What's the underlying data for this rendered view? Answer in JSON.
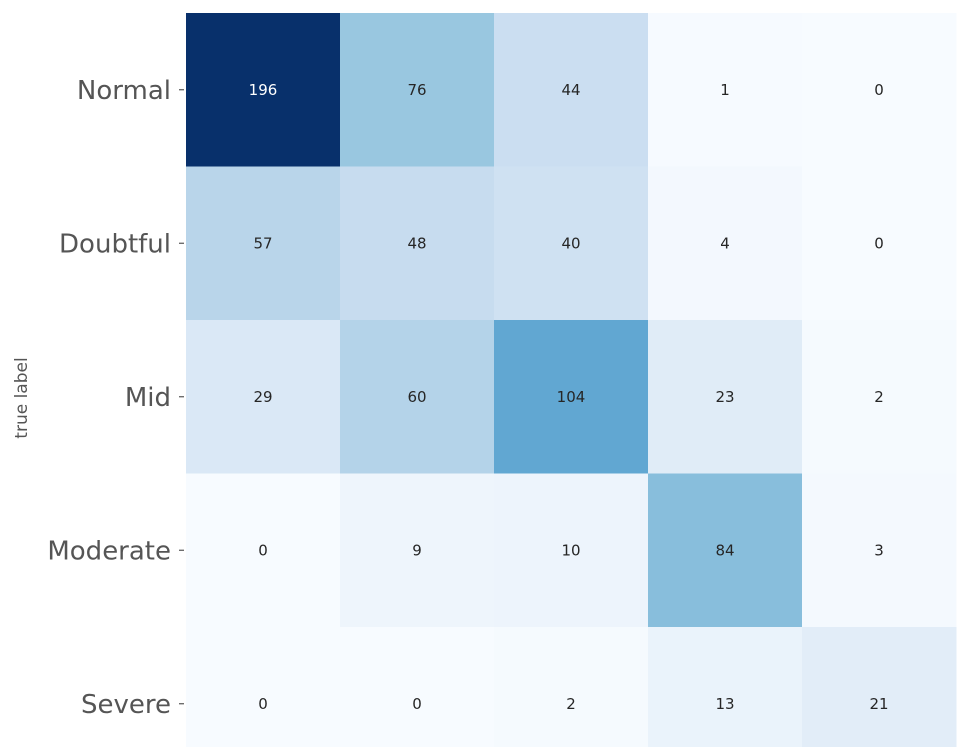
{
  "chart_data": {
    "type": "heatmap",
    "title": "",
    "xlabel": "",
    "ylabel": "true label",
    "row_labels": [
      "Normal",
      "Doubtful",
      "Mid",
      "Moderate",
      "Severe"
    ],
    "col_labels": [],
    "values": [
      [
        196,
        76,
        44,
        1,
        0
      ],
      [
        57,
        48,
        40,
        4,
        0
      ],
      [
        29,
        60,
        104,
        23,
        2
      ],
      [
        0,
        9,
        10,
        84,
        3
      ],
      [
        0,
        0,
        2,
        13,
        21
      ]
    ],
    "colormap": "Blues",
    "color_range": [
      0,
      196
    ],
    "colorbar": false,
    "grid": false
  }
}
